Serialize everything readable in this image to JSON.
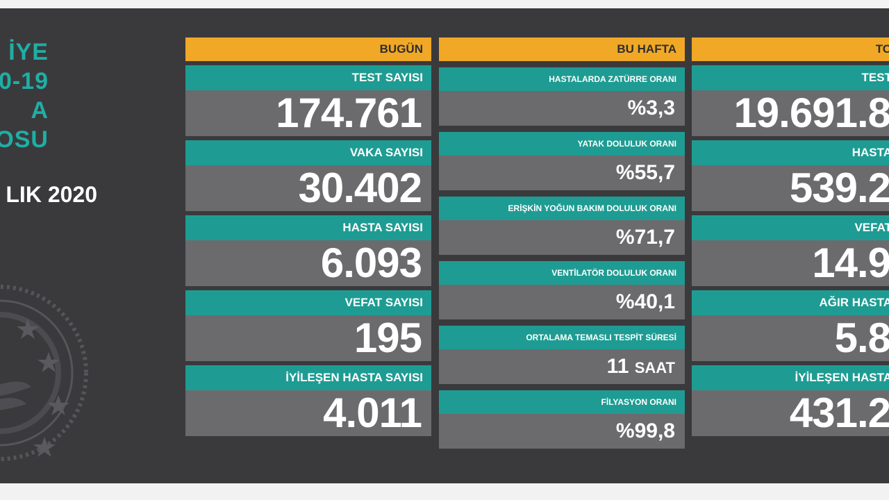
{
  "title_lines": [
    "İYE",
    "0-19",
    "A",
    "OSU"
  ],
  "date": "LIK 2020",
  "colors": {
    "background": "#3a3a3c",
    "header": "#f0a826",
    "label": "#1e9c93",
    "value": "#6b6b6d",
    "title": "#1faea5"
  },
  "today": {
    "header": "BUGÜN",
    "cards": [
      {
        "label": "TEST SAYISI",
        "value": "174.761"
      },
      {
        "label": "VAKA SAYISI",
        "value": "30.402"
      },
      {
        "label": "HASTA SAYISI",
        "value": "6.093"
      },
      {
        "label": "VEFAT SAYISI",
        "value": "195"
      },
      {
        "label": "İYİLEŞEN HASTA SAYISI",
        "value": "4.011"
      }
    ]
  },
  "week": {
    "header": "BU HAFTA",
    "cards": [
      {
        "label": "HASTALARDA ZATÜRRE ORANI",
        "value": "%3,3"
      },
      {
        "label": "YATAK DOLULUK ORANI",
        "value": "%55,7"
      },
      {
        "label": "ERİŞKİN YOĞUN BAKIM DOLULUK ORANI",
        "value": "%71,7"
      },
      {
        "label": "VENTİLATÖR DOLULUK ORANI",
        "value": "%40,1"
      },
      {
        "label": "ORTALAMA TEMASLI TESPİT SÜRESİ",
        "value": "11",
        "unit": "SAAT"
      },
      {
        "label": "FİLYASYON ORANI",
        "value": "%99,8"
      }
    ]
  },
  "total": {
    "header": "TO",
    "cards": [
      {
        "label": "TEST",
        "value": "19.691.8"
      },
      {
        "label": "HASTA",
        "value": "539.2"
      },
      {
        "label": "VEFAT",
        "value": "14.9"
      },
      {
        "label": "AĞIR HASTA",
        "value": "5.8"
      },
      {
        "label": "İYİLEŞEN HASTA",
        "value": "431.2"
      }
    ]
  }
}
